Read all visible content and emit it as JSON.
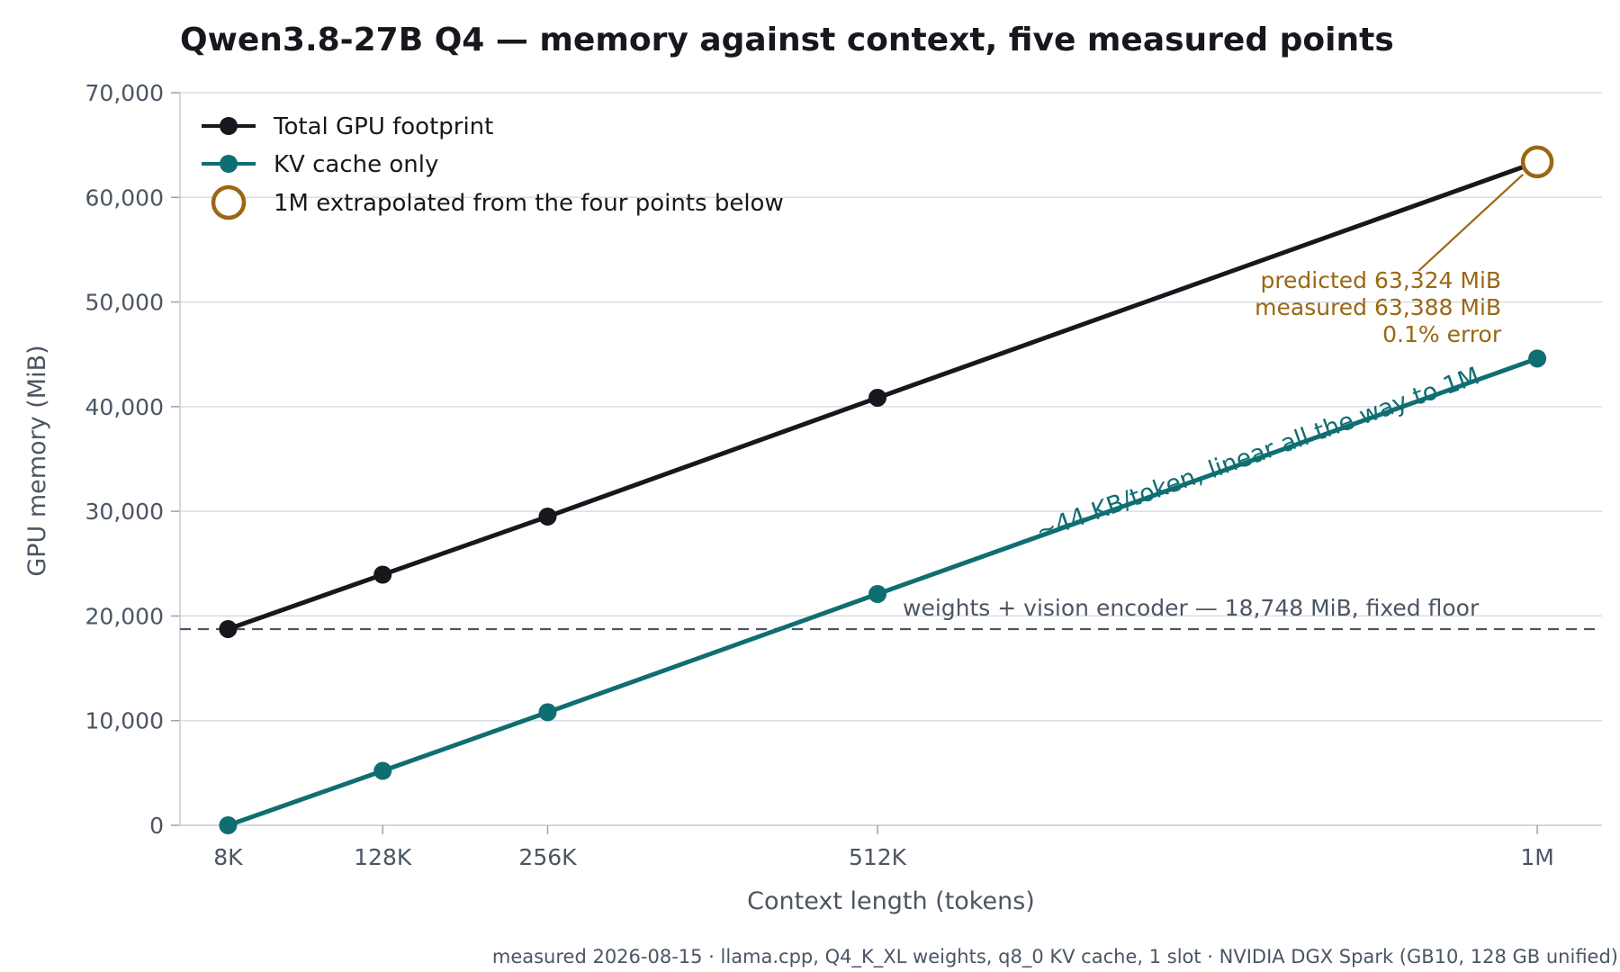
{
  "colors": {
    "total": "#16181d",
    "kv": "#0f6e72",
    "extrapolated": "#9a6712",
    "floor": "#4b5563",
    "grid": "#d9dde3"
  },
  "chart_data": {
    "type": "line",
    "title": "Qwen3.8-27B Q4 — memory against context, five measured points",
    "xlabel": "Context length (tokens)",
    "ylabel": "GPU memory (MiB)",
    "x_ticks": [
      "8K",
      "128K",
      "256K",
      "512K",
      "1M"
    ],
    "x": [
      8192,
      131072,
      262144,
      524288,
      1048576
    ],
    "x_range": [
      -30000,
      1100000
    ],
    "ylim": [
      0,
      70000
    ],
    "y_ticks": [
      "0",
      "10,000",
      "20,000",
      "30,000",
      "40,000",
      "50,000",
      "60,000",
      "70,000"
    ],
    "y_tick_values": [
      0,
      10000,
      20000,
      30000,
      40000,
      50000,
      60000,
      70000
    ],
    "grid": "horizontal",
    "legend_position": "top-left",
    "series": [
      {
        "name": "Total GPU footprint",
        "key": "total",
        "values": [
          18748,
          23950,
          29500,
          40850,
          63388
        ]
      },
      {
        "name": "KV cache only",
        "key": "kv",
        "values": [
          0,
          5200,
          10800,
          22100,
          44600
        ]
      }
    ],
    "extrapolated_point": {
      "label": "1M extrapolated from the four points below",
      "x": 1048576,
      "y": 63388
    },
    "floor": {
      "value": 18748,
      "label": "weights + vision encoder — 18,748 MiB, fixed floor"
    },
    "annotations": {
      "predicted_lines": [
        "predicted 63,324 MiB",
        "measured 63,388 MiB",
        "0.1% error"
      ],
      "kv_slope": "~44 KB/token, linear all the way to 1M"
    },
    "footnote": "measured 2026-08-15 · llama.cpp, Q4_K_XL weights, q8_0 KV cache, 1 slot · NVIDIA DGX Spark (GB10, 128 GB unified)"
  }
}
